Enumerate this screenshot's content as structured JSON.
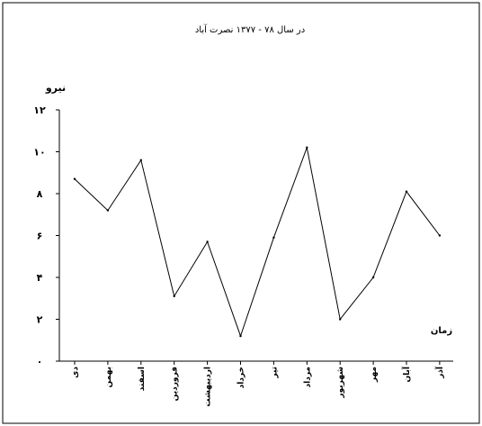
{
  "chart_data": {
    "type": "line",
    "title": "در سال ۷۸ - ۱۳۷۷ نصرت آباد",
    "ylabel": "نیرو",
    "xlabel": "زمان",
    "ylim": [
      0,
      12
    ],
    "yticks": [
      "۰",
      "۲",
      "۴",
      "۶",
      "۸",
      "۱۰",
      "۱۲"
    ],
    "categories": [
      "دی",
      "بهمن",
      "اسفند",
      "فروردین",
      "اردیبهشت",
      "خرداد",
      "تیر",
      "مرداد",
      "شهریور",
      "مهر",
      "آبان",
      "آذر"
    ],
    "values": [
      8.7,
      7.2,
      9.6,
      3.1,
      5.7,
      1.2,
      5.9,
      10.2,
      2.0,
      4.0,
      8.1,
      6.0
    ],
    "grid": false,
    "line_color": "#000000"
  }
}
